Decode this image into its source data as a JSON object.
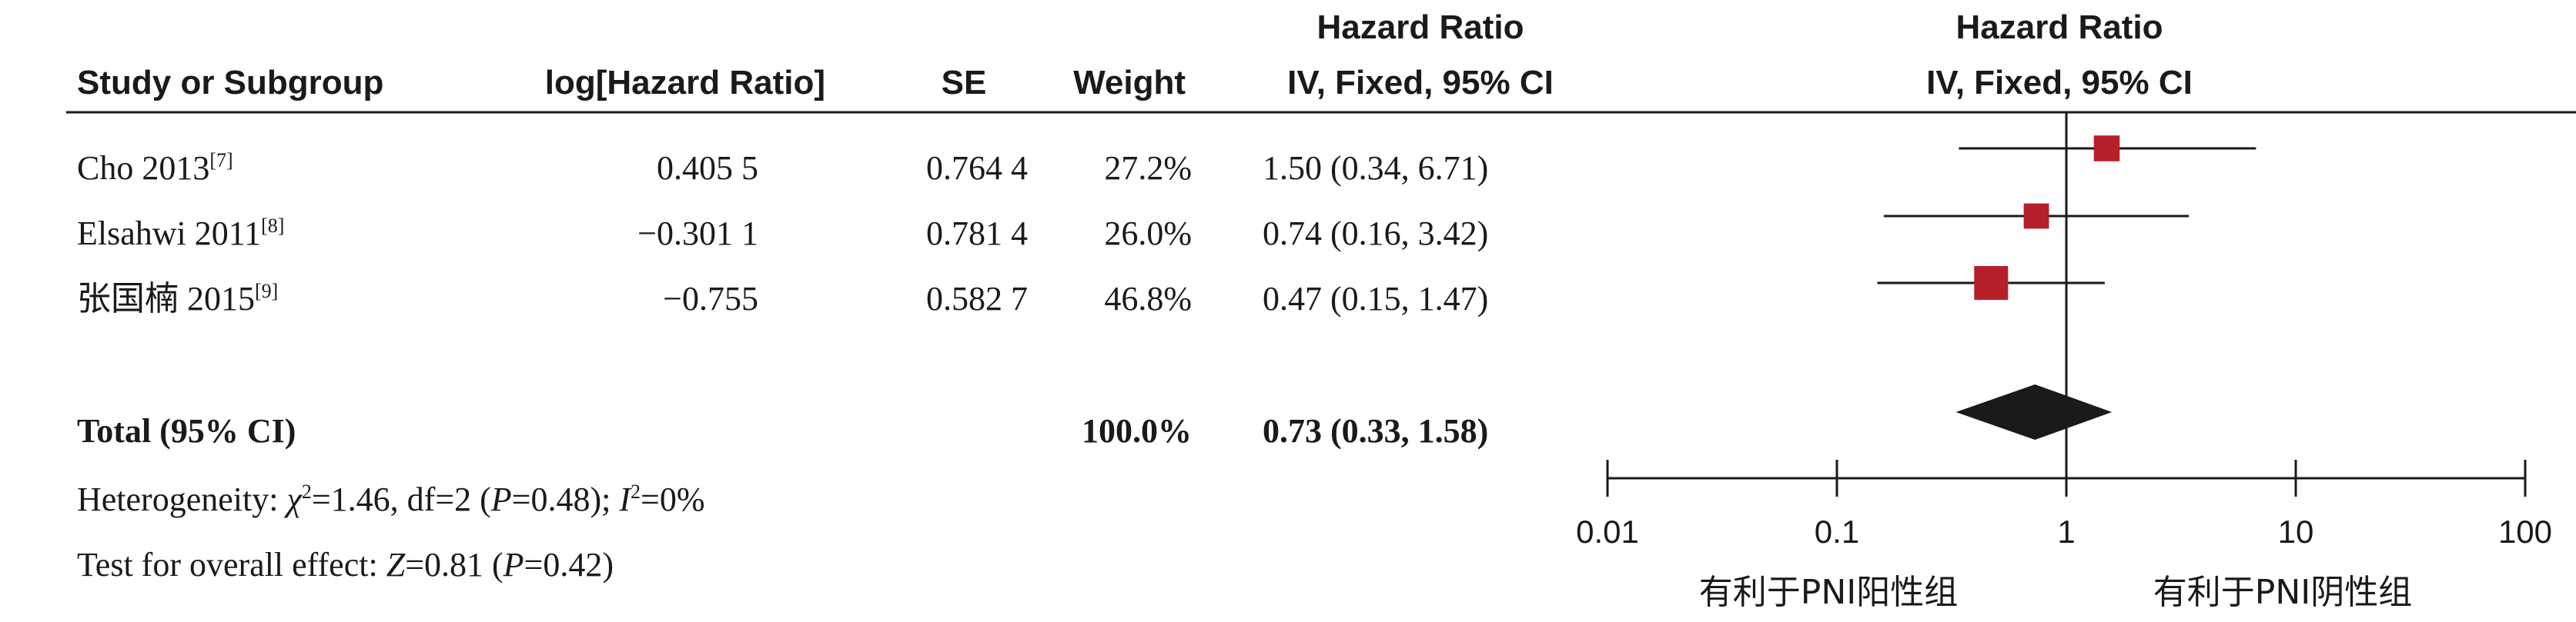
{
  "headers": {
    "study": "Study or Subgroup",
    "loghr": "log[Hazard Ratio]",
    "se": "SE",
    "weight": "Weight",
    "hr_title": "Hazard Ratio",
    "hr_method": "IV, Fixed, 95% CI",
    "plot_title": "Hazard Ratio",
    "plot_method": "IV, Fixed, 95% CI"
  },
  "studies": [
    {
      "name": "Cho 2013",
      "ref": "[7]",
      "loghr": "0.405 5",
      "se": "0.764 4",
      "weight": "27.2%",
      "ci_text": "1.50 (0.34, 6.71)"
    },
    {
      "name": "Elsahwi 2011",
      "ref": "[8]",
      "loghr": "−0.301 1",
      "se": "0.781 4",
      "weight": "26.0%",
      "ci_text": "0.74 (0.16, 3.42)"
    },
    {
      "name": "张国楠 2015",
      "ref": "[9]",
      "loghr": "−0.755",
      "se": "0.582 7",
      "weight": "46.8%",
      "ci_text": "0.47 (0.15, 1.47)"
    }
  ],
  "total": {
    "label": "Total (95% CI)",
    "weight": "100.0%",
    "ci_text": "0.73 (0.33, 1.58)"
  },
  "heterogeneity": {
    "prefix": "Heterogeneity: ",
    "chi_symbol": "χ",
    "chi_sup": "2",
    "chi_rest": "=1.46, df=2 (",
    "p_symbol": "P",
    "p_rest": "=0.48); ",
    "i_symbol": "I",
    "i_sup": "2",
    "i_rest": "=0%"
  },
  "overall_effect": {
    "prefix": "Test for overall effect: ",
    "z_symbol": "Z",
    "z_rest": "=0.81 (",
    "p_symbol": "P",
    "p_rest": "=0.42)"
  },
  "favours": {
    "left": "有利于PNI阳性组",
    "right": "有利于PNI阴性组"
  },
  "colors": {
    "marker": "#b5202a",
    "diamond": "#1a1a1a",
    "line": "#1a1a1a"
  },
  "chart_data": {
    "type": "forest",
    "scale": "log",
    "xlim": [
      0.01,
      100
    ],
    "ticks": [
      0.01,
      0.1,
      1,
      10,
      100
    ],
    "tick_labels": [
      "0.01",
      "0.1",
      "1",
      "10",
      "100"
    ],
    "reference_line": 1,
    "studies": [
      {
        "name": "Cho 2013",
        "hr": 1.5,
        "lo": 0.34,
        "hi": 6.71,
        "weight": 27.2
      },
      {
        "name": "Elsahwi 2011",
        "hr": 0.74,
        "lo": 0.16,
        "hi": 3.42,
        "weight": 26.0
      },
      {
        "name": "张国楠 2015",
        "hr": 0.47,
        "lo": 0.15,
        "hi": 1.47,
        "weight": 46.8
      }
    ],
    "pooled": {
      "hr": 0.73,
      "lo": 0.33,
      "hi": 1.58
    }
  }
}
